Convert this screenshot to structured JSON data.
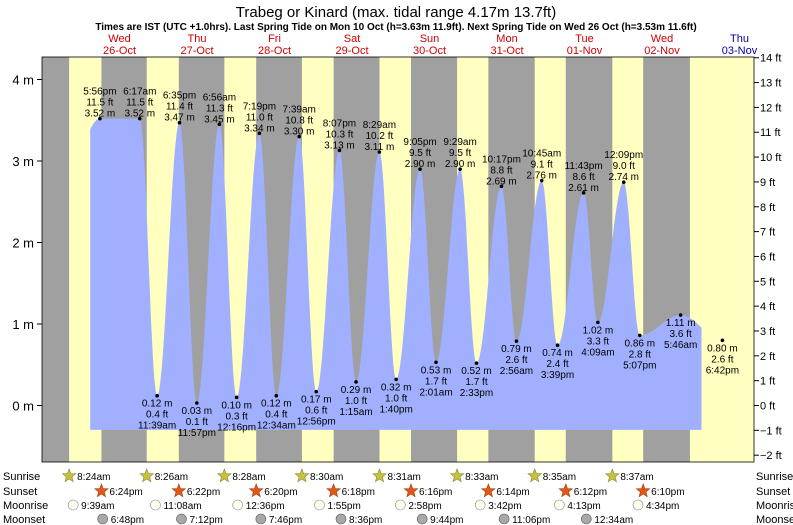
{
  "title": "Trabeg or Kinard (max. tidal range 4.17m 13.7ft)",
  "subtitle": "Times are IST (UTC +1.0hrs). Last Spring Tide on Mon 10 Oct (h=3.63m 11.9ft). Next Spring Tide on Wed 26 Oct (h=3.53m 11.6ft)",
  "colors": {
    "day": "#ffffc0",
    "night": "#a0a0a0",
    "water": "#a0b0ff",
    "header_red": "#cc0000",
    "header_blue": "#0000aa"
  },
  "days": [
    {
      "dow": "Wed",
      "date": "26-Oct",
      "weekend": false
    },
    {
      "dow": "Thu",
      "date": "27-Oct",
      "weekend": false
    },
    {
      "dow": "Fri",
      "date": "28-Oct",
      "weekend": false
    },
    {
      "dow": "Sat",
      "date": "29-Oct",
      "weekend": true
    },
    {
      "dow": "Sun",
      "date": "30-Oct",
      "weekend": true
    },
    {
      "dow": "Mon",
      "date": "31-Oct",
      "weekend": false
    },
    {
      "dow": "Tue",
      "date": "01-Nov",
      "weekend": false
    },
    {
      "dow": "Wed",
      "date": "02-Nov",
      "weekend": false
    },
    {
      "dow": "Thu",
      "date": "03-Nov",
      "weekend": false
    }
  ],
  "chart_data": {
    "type": "area",
    "title": "Trabeg or Kinard (max. tidal range 4.17m 13.7ft)",
    "left_axis": {
      "unit": "m",
      "ticks": [
        "4 m",
        "3 m",
        "2 m",
        "1 m",
        "0 m"
      ],
      "values": [
        4,
        3,
        2,
        1,
        0
      ],
      "ylim": [
        -0.6,
        4.2
      ]
    },
    "right_axis": {
      "unit": "ft",
      "ticks": [
        "14 ft",
        "13 ft",
        "12 ft",
        "11 ft",
        "10 ft",
        "9 ft",
        "8 ft",
        "7 ft",
        "6 ft",
        "5 ft",
        "4 ft",
        "3 ft",
        "2 ft",
        "1 ft",
        "0 ft",
        "−1 ft",
        "−2 ft"
      ],
      "values": [
        14,
        13,
        12,
        11,
        10,
        9,
        8,
        7,
        6,
        5,
        4,
        3,
        2,
        1,
        0,
        -1,
        -2
      ]
    },
    "x_range_days": [
      "26-Oct",
      "03-Nov"
    ],
    "tides": [
      {
        "type": "high",
        "time": "5:56 pm",
        "day": "25-Oct",
        "m": 3.52,
        "ft": "11.5 ft",
        "h": 17.93
      },
      {
        "type": "low",
        "time": "11:39 am",
        "day": "26-Oct",
        "m": 0.12,
        "ft": "0.4 ft",
        "h": 35.65
      },
      {
        "type": "high",
        "time": "6:17 am",
        "day": "26-Oct",
        "m": 3.52,
        "ft": "11.5 ft",
        "h": 30.28
      },
      {
        "type": "low",
        "time": "11:57 pm",
        "day": "26-Oct",
        "m": 0.03,
        "ft": "0.1 ft",
        "h": 47.95
      },
      {
        "type": "high",
        "time": "6:35 pm",
        "day": "26-Oct",
        "m": 3.47,
        "ft": "11.4 ft",
        "h": 42.58
      },
      {
        "type": "low",
        "time": "12:16 pm",
        "day": "27-Oct",
        "m": 0.1,
        "ft": "0.3 ft",
        "h": 60.27
      },
      {
        "type": "high",
        "time": "6:56 am",
        "day": "27-Oct",
        "m": 3.45,
        "ft": "11.3 ft",
        "h": 54.93
      },
      {
        "type": "low",
        "time": "12:34 am",
        "day": "28-Oct",
        "m": 0.12,
        "ft": "0.4 ft",
        "h": 72.57
      },
      {
        "type": "high",
        "time": "7:19 pm",
        "day": "27-Oct",
        "m": 3.34,
        "ft": "11.0 ft",
        "h": 67.32
      },
      {
        "type": "low",
        "time": "12:56 pm",
        "day": "28-Oct",
        "m": 0.17,
        "ft": "0.6 ft",
        "h": 84.93
      },
      {
        "type": "high",
        "time": "7:39 am",
        "day": "28-Oct",
        "m": 3.3,
        "ft": "10.8 ft",
        "h": 79.65
      },
      {
        "type": "low",
        "time": "1:15 am",
        "day": "29-Oct",
        "m": 0.29,
        "ft": "1.0 ft",
        "h": 97.25
      },
      {
        "type": "high",
        "time": "8:07 pm",
        "day": "28-Oct",
        "m": 3.13,
        "ft": "10.3 ft",
        "h": 92.12
      },
      {
        "type": "low",
        "time": "1:40 pm",
        "day": "29-Oct",
        "m": 0.32,
        "ft": "1.0 ft",
        "h": 109.67
      },
      {
        "type": "high",
        "time": "8:29 am",
        "day": "29-Oct",
        "m": 3.11,
        "ft": "10.2 ft",
        "h": 104.48
      },
      {
        "type": "low",
        "time": "2:01 am",
        "day": "30-Oct",
        "m": 0.53,
        "ft": "1.7 ft",
        "h": 122.02
      },
      {
        "type": "high",
        "time": "9:05 pm",
        "day": "29-Oct",
        "m": 2.9,
        "ft": "9.5 ft",
        "h": 117.08
      },
      {
        "type": "low",
        "time": "2:33 pm",
        "day": "30-Oct",
        "m": 0.52,
        "ft": "1.7 ft",
        "h": 134.55
      },
      {
        "type": "high",
        "time": "9:29 am",
        "day": "30-Oct",
        "m": 2.9,
        "ft": "9.5 ft",
        "h": 129.48
      },
      {
        "type": "low",
        "time": "2:56 am",
        "day": "31-Oct",
        "m": 0.79,
        "ft": "2.6 ft",
        "h": 146.93
      },
      {
        "type": "high",
        "time": "10:17 pm",
        "day": "30-Oct",
        "m": 2.69,
        "ft": "8.8 ft",
        "h": 142.28
      },
      {
        "type": "low",
        "time": "3:39 pm",
        "day": "31-Oct",
        "m": 0.74,
        "ft": "2.4 ft",
        "h": 159.65
      },
      {
        "type": "high",
        "time": "10:45 am",
        "day": "31-Oct",
        "m": 2.76,
        "ft": "9.1 ft",
        "h": 154.75
      },
      {
        "type": "low",
        "time": "4:09 am",
        "day": "01-Nov",
        "m": 1.02,
        "ft": "3.3 ft",
        "h": 172.15
      },
      {
        "type": "high",
        "time": "11:43 pm",
        "day": "31-Oct",
        "m": 2.61,
        "ft": "8.6 ft",
        "h": 167.72
      },
      {
        "type": "low",
        "time": "5:07 pm",
        "day": "01-Nov",
        "m": 0.86,
        "ft": "2.8 ft",
        "h": 185.12
      },
      {
        "type": "high",
        "time": "12:09 pm",
        "day": "01-Nov",
        "m": 2.74,
        "ft": "9.0 ft",
        "h": 180.15
      },
      {
        "type": "low",
        "time": "5:46 am",
        "day": "02-Nov",
        "m": 1.11,
        "ft": "3.6 ft",
        "h": 197.77
      },
      {
        "type": "low",
        "time": "6:42 pm",
        "day": "02-Nov",
        "m": 0.8,
        "ft": "2.6 ft",
        "h": 210.7
      }
    ],
    "label_rows": [
      {
        "label": "Sunrise",
        "icon": "star-icon",
        "color": "#d4c040",
        "times": [
          "8:24am",
          "8:26am",
          "8:28am",
          "8:30am",
          "8:31am",
          "8:33am",
          "8:35am",
          "8:37am"
        ]
      },
      {
        "label": "Sunset",
        "icon": "star-icon",
        "color": "#e06020",
        "times": [
          "6:24pm",
          "6:22pm",
          "6:20pm",
          "6:18pm",
          "6:16pm",
          "6:14pm",
          "6:12pm",
          "6:10pm"
        ]
      },
      {
        "label": "Moonrise",
        "icon": "circle-icon",
        "color": "#fffff0",
        "times": [
          "9:39am",
          "11:08am",
          "12:36pm",
          "1:55pm",
          "2:58pm",
          "3:42pm",
          "4:13pm",
          "4:34pm"
        ]
      },
      {
        "label": "Moonset",
        "icon": "circle-icon",
        "color": "#a0a0a0",
        "times": [
          "6:48pm",
          "7:12pm",
          "7:46pm",
          "8:36pm",
          "9:44pm",
          "11:06pm",
          "12:34am"
        ]
      }
    ]
  },
  "rows": {
    "sunrise": {
      "label": "Sunrise",
      "hours": [
        8.4,
        8.43,
        8.47,
        8.5,
        8.52,
        8.55,
        8.58,
        8.62
      ]
    },
    "sunset": {
      "label": "Sunset",
      "hours": [
        18.4,
        18.37,
        18.33,
        18.3,
        18.27,
        18.23,
        18.2,
        18.17
      ]
    },
    "moonrise": {
      "label": "Moonrise",
      "hours": [
        9.65,
        11.13,
        12.6,
        13.92,
        14.97,
        15.7,
        16.22,
        16.57
      ]
    },
    "moonset": {
      "label": "Moonset",
      "hours": [
        18.8,
        19.2,
        19.77,
        20.6,
        21.73,
        23.1,
        24.57
      ]
    }
  }
}
